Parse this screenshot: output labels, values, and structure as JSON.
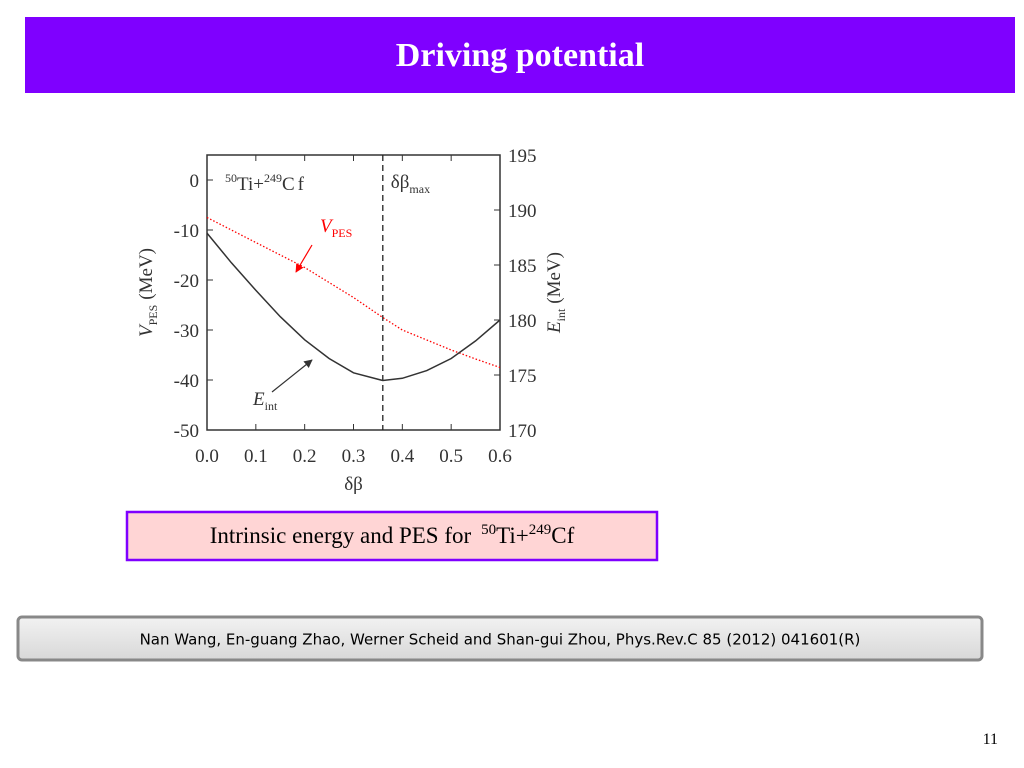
{
  "slide": {
    "title": "Driving potential",
    "caption": {
      "text": "Intrinsic energy and PES for",
      "sup1": "50",
      "mid": "Ti+",
      "sup2": "249",
      "end": "Cf"
    },
    "reference": "Nan  Wang, En-guang Zhao, Werner Scheid and Shan-gui Zhou,  Phys.Rev.C 85 (2012) 041601(R)",
    "page_number": "11"
  },
  "chart_data": {
    "type": "line",
    "x": [
      0,
      0.05,
      0.1,
      0.15,
      0.2,
      0.25,
      0.3,
      0.36,
      0.4,
      0.45,
      0.5,
      0.55,
      0.6
    ],
    "series": [
      {
        "name": "V",
        "name_sub": "PES",
        "color": "#ff0000",
        "values": [
          -7.5,
          -10,
          -12.5,
          -15,
          -17.5,
          -20.5,
          -23.5,
          -27.5,
          -30,
          -32,
          -34,
          -35.8,
          -37.5
        ]
      },
      {
        "name": "E",
        "name_sub": "int",
        "color": "#333333",
        "axis": "y2",
        "values": [
          187.9,
          185.2,
          182.7,
          180.3,
          178.2,
          176.5,
          175.2,
          174.5,
          174.7,
          175.4,
          176.5,
          178.1,
          180.0
        ]
      }
    ],
    "reaction": {
      "sup1": "50",
      "a": "Ti+",
      "sup2": "249",
      "b": "Cf"
    },
    "xlabel": "δβ",
    "ylabel": {
      "main": "V",
      "sub": "PES",
      "unit": "(MeV)"
    },
    "y2label": {
      "main": "E",
      "sub": "int",
      "unit": "(MeV)"
    },
    "vline": {
      "value": 0.36,
      "label": "δβ",
      "label_sub": "max"
    },
    "xlim": [
      0,
      0.6
    ],
    "xticks": [
      {
        "value": 0,
        "label": "0.0"
      },
      0.1,
      0.2,
      0.3,
      0.4,
      0.5,
      0.6
    ],
    "ylim": [
      -50,
      5
    ],
    "yticks": [
      -50,
      -40,
      -30,
      -20,
      -10,
      0
    ],
    "y2lim": [
      170,
      195
    ],
    "y2ticks": [
      170,
      175,
      180,
      185,
      190,
      195
    ]
  }
}
